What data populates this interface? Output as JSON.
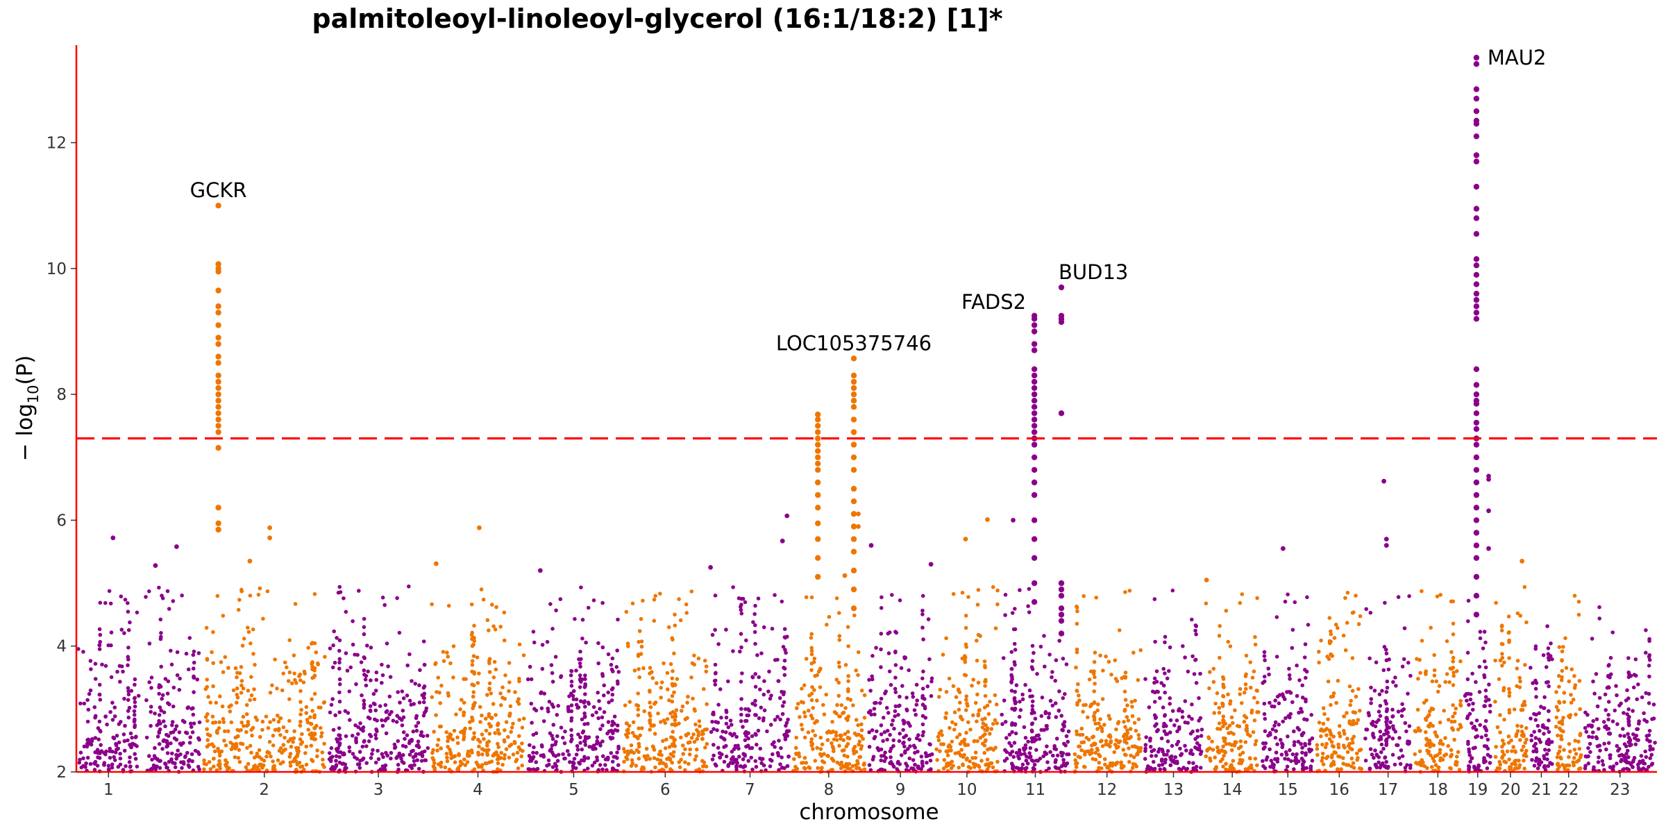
{
  "chart_data": {
    "type": "scatter",
    "subtype": "manhattan",
    "title": "palmitoleoyl-linoleoyl-glycerol (16:1/18:2) [1]*",
    "xlabel": "chromosome",
    "ylabel_prefix": "− log",
    "ylabel_sub": "10",
    "ylabel_suffix": "(P)",
    "ylim": [
      2,
      13.55
    ],
    "yticks": [
      2,
      4,
      6,
      8,
      10,
      12
    ],
    "significance_threshold": 7.3,
    "colors": {
      "odd_chromosome": "#8B008B",
      "even_chromosome": "#EE7600",
      "threshold_line": "#FF0000",
      "axis_line": "#FF0000"
    },
    "chromosomes": [
      {
        "label": "1",
        "start": 0,
        "end": 100,
        "color": "#8B008B"
      },
      {
        "label": "",
        "start": 105,
        "end": 195,
        "color": "#8B008B"
      },
      {
        "label": "2",
        "start": 195,
        "end": 390,
        "color": "#EE7600"
      },
      {
        "label": "3",
        "start": 390,
        "end": 550,
        "color": "#8B008B"
      },
      {
        "label": "4",
        "start": 550,
        "end": 700,
        "color": "#EE7600"
      },
      {
        "label": "5",
        "start": 700,
        "end": 848,
        "color": "#8B008B"
      },
      {
        "label": "6",
        "start": 848,
        "end": 985,
        "color": "#EE7600"
      },
      {
        "label": "7",
        "start": 985,
        "end": 1112,
        "color": "#8B008B"
      },
      {
        "label": "8",
        "start": 1112,
        "end": 1230,
        "color": "#EE7600"
      },
      {
        "label": "9",
        "start": 1230,
        "end": 1335,
        "color": "#8B008B"
      },
      {
        "label": "10",
        "start": 1335,
        "end": 1437,
        "color": "#EE7600"
      },
      {
        "label": "11",
        "start": 1437,
        "end": 1548,
        "color": "#8B008B"
      },
      {
        "label": "12",
        "start": 1548,
        "end": 1660,
        "color": "#EE7600"
      },
      {
        "label": "13",
        "start": 1660,
        "end": 1755,
        "color": "#8B008B"
      },
      {
        "label": "14",
        "start": 1755,
        "end": 1843,
        "color": "#EE7600"
      },
      {
        "label": "15",
        "start": 1843,
        "end": 1928,
        "color": "#8B008B"
      },
      {
        "label": "16",
        "start": 1928,
        "end": 2003,
        "color": "#EE7600"
      },
      {
        "label": "17",
        "start": 2003,
        "end": 2080,
        "color": "#8B008B"
      },
      {
        "label": "18",
        "start": 2080,
        "end": 2158,
        "color": "#EE7600"
      },
      {
        "label": "19",
        "start": 2158,
        "end": 2204,
        "color": "#8B008B"
      },
      {
        "label": "20",
        "start": 2204,
        "end": 2260,
        "color": "#EE7600"
      },
      {
        "label": "21",
        "start": 2260,
        "end": 2300,
        "color": "#8B008B"
      },
      {
        "label": "22",
        "start": 2300,
        "end": 2345,
        "color": "#EE7600"
      },
      {
        "label": "23",
        "start": 2345,
        "end": 2460,
        "color": "#8B008B"
      }
    ],
    "peaks": [
      {
        "x": 221,
        "ys": [
          11.0,
          10.07,
          10.0,
          9.95,
          9.65,
          9.4,
          9.3,
          9.1,
          8.9,
          8.8,
          8.6,
          8.5,
          8.3,
          8.2,
          8.1,
          8.0,
          7.9,
          7.8,
          7.7,
          7.6,
          7.5,
          7.4,
          7.15,
          6.2,
          5.95,
          5.85
        ],
        "color": "#EE7600"
      },
      {
        "x": 1154,
        "ys": [
          7.68,
          7.6,
          7.5,
          7.4,
          7.3,
          7.2,
          7.1,
          7.0,
          6.9,
          6.8,
          6.6,
          6.4,
          6.2,
          5.95,
          5.7,
          5.4,
          5.1
        ],
        "color": "#EE7600"
      },
      {
        "x": 1210,
        "ys": [
          8.57,
          8.3,
          8.2,
          8.1,
          8.0,
          7.9,
          7.8,
          7.6,
          7.4,
          7.2,
          7.0,
          6.8,
          6.5,
          6.3,
          6.1,
          5.9,
          5.7,
          5.5,
          5.2,
          4.9,
          4.6
        ],
        "color": "#EE7600"
      },
      {
        "x": 1491,
        "ys": [
          9.25,
          9.2,
          9.1,
          9.0,
          8.8,
          8.7,
          8.4,
          8.3,
          8.2,
          8.1,
          8.0,
          7.9,
          7.8,
          7.7,
          7.6,
          7.5,
          7.4,
          7.3,
          7.2,
          7.0,
          6.8,
          6.6,
          6.4,
          6.0,
          5.7,
          5.4,
          5.0,
          4.7
        ],
        "color": "#8B008B"
      },
      {
        "x": 1533,
        "ys": [
          9.7,
          9.25,
          9.2,
          9.15,
          7.7,
          5.0,
          4.9,
          4.8,
          4.6,
          4.5,
          4.4,
          4.2
        ],
        "color": "#8B008B"
      },
      {
        "x": 2179,
        "ys": [
          13.35,
          13.25,
          12.85,
          12.7,
          12.5,
          12.35,
          12.3,
          12.1,
          11.8,
          11.7,
          11.3,
          10.95,
          10.8,
          10.55,
          10.15,
          10.05,
          9.9,
          9.75,
          9.6,
          9.5,
          9.4,
          9.3,
          9.2,
          8.4,
          8.15,
          8.0,
          7.9,
          7.85,
          7.7,
          7.55,
          7.45,
          7.3,
          7.2,
          7.0,
          6.8,
          6.6,
          6.4,
          6.2,
          6.0,
          5.8,
          5.6,
          5.4,
          5.1,
          4.8,
          4.5
        ],
        "color": "#8B008B"
      }
    ],
    "scattered_highs": [
      {
        "x": 57,
        "y": 5.72
      },
      {
        "x": 156,
        "y": 5.58
      },
      {
        "x": 123,
        "y": 5.28
      },
      {
        "x": 270,
        "y": 5.35
      },
      {
        "x": 301,
        "y": 5.88
      },
      {
        "x": 301,
        "y": 5.72
      },
      {
        "x": 627,
        "y": 5.88
      },
      {
        "x": 560,
        "y": 5.31
      },
      {
        "x": 1106,
        "y": 6.07
      },
      {
        "x": 1099,
        "y": 5.67
      },
      {
        "x": 1196,
        "y": 5.12
      },
      {
        "x": 1384,
        "y": 5.7
      },
      {
        "x": 1458,
        "y": 6.0
      },
      {
        "x": 1418,
        "y": 6.01
      },
      {
        "x": 1237,
        "y": 5.6
      },
      {
        "x": 1217,
        "y": 6.1
      },
      {
        "x": 1217,
        "y": 5.9
      },
      {
        "x": 2035,
        "y": 6.62
      },
      {
        "x": 2198,
        "y": 6.7
      },
      {
        "x": 2198,
        "y": 6.65
      },
      {
        "x": 2198,
        "y": 6.15
      },
      {
        "x": 2198,
        "y": 5.55
      },
      {
        "x": 2250,
        "y": 5.35
      },
      {
        "x": 2039,
        "y": 5.6
      },
      {
        "x": 2039,
        "y": 5.7
      },
      {
        "x": 1878,
        "y": 5.55
      },
      {
        "x": 1330,
        "y": 5.3
      },
      {
        "x": 722,
        "y": 5.2
      },
      {
        "x": 987,
        "y": 5.25
      },
      {
        "x": 1759,
        "y": 5.05
      }
    ],
    "annotations": [
      {
        "text": "GCKR",
        "x": 221,
        "y": 11.0
      },
      {
        "text": "LOC105375746",
        "x": 1210,
        "y": 8.57
      },
      {
        "text": "FADS2",
        "x": 1491,
        "y": 9.25
      },
      {
        "text": "BUD13",
        "x": 1533,
        "y": 9.7
      },
      {
        "text": "MAU2",
        "x": 2179,
        "y": 13.35
      }
    ]
  }
}
